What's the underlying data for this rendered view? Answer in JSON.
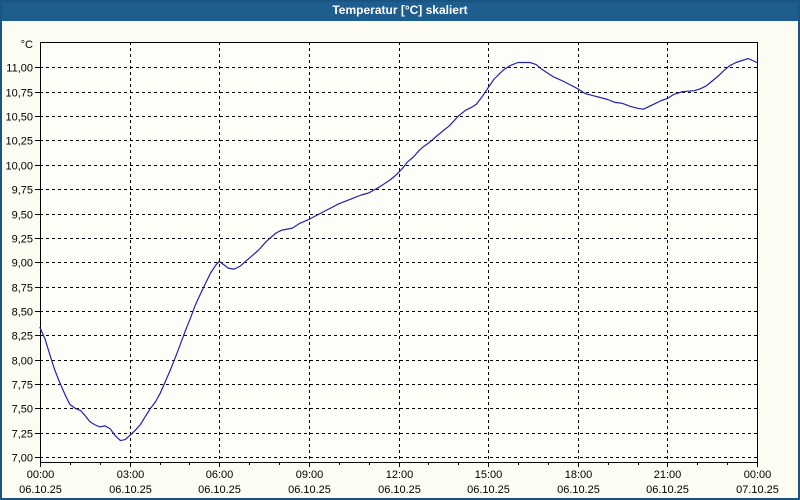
{
  "window": {
    "title": "Temperatur [°C] skaliert"
  },
  "colors": {
    "titlebar_bg": "#1E5E8E",
    "titlebar_text": "#FFFFFF",
    "window_border": "#1A5480",
    "page_bg": "#FCFCF2",
    "plot_bg": "#FEFEF8",
    "grid_line": "#000000",
    "axis_line": "#000000",
    "label_text": "#000000",
    "series_line": "#2323AB"
  },
  "chart_data": {
    "type": "line",
    "title": "Temperatur [°C] skaliert",
    "grid": "dashed",
    "legend": "none",
    "y_axis": {
      "unit_label": "°C",
      "min": 6.95,
      "max": 11.26,
      "tick_step": 0.25,
      "ticks": [
        {
          "value": 7.0,
          "label": "7,00"
        },
        {
          "value": 7.25,
          "label": "7,25"
        },
        {
          "value": 7.5,
          "label": "7,50"
        },
        {
          "value": 7.75,
          "label": "7,75"
        },
        {
          "value": 8.0,
          "label": "8,00"
        },
        {
          "value": 8.25,
          "label": "8,25"
        },
        {
          "value": 8.5,
          "label": "8,50"
        },
        {
          "value": 8.75,
          "label": "8,75"
        },
        {
          "value": 9.0,
          "label": "9,00"
        },
        {
          "value": 9.25,
          "label": "9,25"
        },
        {
          "value": 9.5,
          "label": "9,50"
        },
        {
          "value": 9.75,
          "label": "9,75"
        },
        {
          "value": 10.0,
          "label": "10,00"
        },
        {
          "value": 10.25,
          "label": "10,25"
        },
        {
          "value": 10.5,
          "label": "10,50"
        },
        {
          "value": 10.75,
          "label": "10,75"
        },
        {
          "value": 11.0,
          "label": "11,00"
        }
      ]
    },
    "x_axis": {
      "min_hour": 0,
      "max_hour": 24,
      "minor_tick_interval_hours": 1,
      "major_ticks": [
        {
          "hour": 0,
          "time": "00:00",
          "date": "06.10.25"
        },
        {
          "hour": 3,
          "time": "03:00",
          "date": "06.10.25"
        },
        {
          "hour": 6,
          "time": "06:00",
          "date": "06.10.25"
        },
        {
          "hour": 9,
          "time": "09:00",
          "date": "06.10.25"
        },
        {
          "hour": 12,
          "time": "12:00",
          "date": "06.10.25"
        },
        {
          "hour": 15,
          "time": "15:00",
          "date": "06.10.25"
        },
        {
          "hour": 18,
          "time": "18:00",
          "date": "06.10.25"
        },
        {
          "hour": 21,
          "time": "21:00",
          "date": "06.10.25"
        },
        {
          "hour": 24,
          "time": "00:00",
          "date": "07.10.25"
        }
      ]
    },
    "series": [
      {
        "name": "Temperatur",
        "color": "#2323AB",
        "points": [
          [
            0,
            8.33
          ],
          [
            0.17,
            8.21
          ],
          [
            0.33,
            8.05
          ],
          [
            0.5,
            7.89
          ],
          [
            0.67,
            7.76
          ],
          [
            0.84,
            7.64
          ],
          [
            1,
            7.54
          ],
          [
            1.18,
            7.5
          ],
          [
            1.35,
            7.48
          ],
          [
            1.5,
            7.43
          ],
          [
            1.68,
            7.36
          ],
          [
            1.85,
            7.33
          ],
          [
            2,
            7.31
          ],
          [
            2.18,
            7.32
          ],
          [
            2.35,
            7.29
          ],
          [
            2.52,
            7.22
          ],
          [
            2.69,
            7.17
          ],
          [
            2.85,
            7.18
          ],
          [
            3,
            7.22
          ],
          [
            3.17,
            7.27
          ],
          [
            3.35,
            7.33
          ],
          [
            3.53,
            7.42
          ],
          [
            3.7,
            7.5
          ],
          [
            3.87,
            7.57
          ],
          [
            4.03,
            7.66
          ],
          [
            4.2,
            7.78
          ],
          [
            4.37,
            7.9
          ],
          [
            4.54,
            8.03
          ],
          [
            4.7,
            8.16
          ],
          [
            4.87,
            8.3
          ],
          [
            5.04,
            8.43
          ],
          [
            5.2,
            8.56
          ],
          [
            5.38,
            8.68
          ],
          [
            5.55,
            8.79
          ],
          [
            5.71,
            8.89
          ],
          [
            5.88,
            8.97
          ],
          [
            6,
            9.01
          ],
          [
            6.3,
            8.94
          ],
          [
            6.5,
            8.93
          ],
          [
            6.7,
            8.96
          ],
          [
            7,
            9.04
          ],
          [
            7.3,
            9.12
          ],
          [
            7.6,
            9.22
          ],
          [
            7.9,
            9.3
          ],
          [
            8.1,
            9.33
          ],
          [
            8.45,
            9.35
          ],
          [
            8.7,
            9.4
          ],
          [
            9,
            9.44
          ],
          [
            9.5,
            9.52
          ],
          [
            10,
            9.6
          ],
          [
            10.5,
            9.66
          ],
          [
            10.75,
            9.69
          ],
          [
            11,
            9.71
          ],
          [
            11.35,
            9.77
          ],
          [
            11.7,
            9.84
          ],
          [
            11.9,
            9.89
          ],
          [
            12,
            9.92
          ],
          [
            12.15,
            9.97
          ],
          [
            12.3,
            10.03
          ],
          [
            12.5,
            10.08
          ],
          [
            12.7,
            10.15
          ],
          [
            12.85,
            10.19
          ],
          [
            13,
            10.22
          ],
          [
            13.3,
            10.3
          ],
          [
            13.7,
            10.4
          ],
          [
            14,
            10.5
          ],
          [
            14.25,
            10.56
          ],
          [
            14.45,
            10.59
          ],
          [
            14.6,
            10.62
          ],
          [
            14.8,
            10.7
          ],
          [
            15,
            10.79
          ],
          [
            15.2,
            10.88
          ],
          [
            15.5,
            10.97
          ],
          [
            15.75,
            11.02
          ],
          [
            16,
            11.05
          ],
          [
            16.4,
            11.05
          ],
          [
            16.6,
            11.03
          ],
          [
            16.8,
            10.98
          ],
          [
            17,
            10.94
          ],
          [
            17.2,
            10.9
          ],
          [
            17.5,
            10.86
          ],
          [
            17.75,
            10.82
          ],
          [
            18,
            10.78
          ],
          [
            18.25,
            10.73
          ],
          [
            18.5,
            10.71
          ],
          [
            18.75,
            10.69
          ],
          [
            19,
            10.67
          ],
          [
            19.25,
            10.64
          ],
          [
            19.5,
            10.63
          ],
          [
            19.75,
            10.6
          ],
          [
            20,
            10.58
          ],
          [
            20.2,
            10.57
          ],
          [
            20.4,
            10.6
          ],
          [
            20.6,
            10.63
          ],
          [
            20.8,
            10.66
          ],
          [
            21,
            10.68
          ],
          [
            21.2,
            10.72
          ],
          [
            21.5,
            10.75
          ],
          [
            21.9,
            10.76
          ],
          [
            22.1,
            10.78
          ],
          [
            22.3,
            10.81
          ],
          [
            22.5,
            10.86
          ],
          [
            22.7,
            10.91
          ],
          [
            22.9,
            10.97
          ],
          [
            23.1,
            11.02
          ],
          [
            23.3,
            11.05
          ],
          [
            23.5,
            11.07
          ],
          [
            23.7,
            11.09
          ],
          [
            23.85,
            11.07
          ],
          [
            24,
            11.05
          ]
        ]
      }
    ]
  }
}
